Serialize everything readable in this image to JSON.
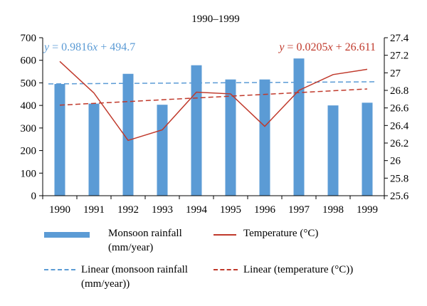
{
  "chart_data": {
    "type": "bar+line",
    "title": "1990–1999",
    "categories": [
      "1990",
      "1991",
      "1992",
      "1993",
      "1994",
      "1995",
      "1996",
      "1997",
      "1998",
      "1999"
    ],
    "series": [
      {
        "name": "Monsoon rainfall (mm/year)",
        "type": "bar",
        "axis": "left",
        "color": "#5b9bd5",
        "values": [
          495,
          408,
          540,
          403,
          578,
          515,
          515,
          608,
          400,
          412
        ]
      },
      {
        "name": "Temperature (°C)",
        "type": "line",
        "axis": "right",
        "color": "#c0392b",
        "values": [
          27.13,
          26.77,
          26.23,
          26.35,
          26.78,
          26.76,
          26.39,
          26.8,
          26.98,
          27.04
        ]
      },
      {
        "name": "Linear (monsoon rainfall (mm/year))",
        "type": "trend-dashed",
        "axis": "left",
        "color": "#5b9bd5",
        "slope": 0.9816,
        "intercept": 494.7
      },
      {
        "name": "Linear (temperature (°C))",
        "type": "trend-dashed",
        "axis": "right",
        "color": "#c0392b",
        "slope": 0.0205,
        "intercept": 26.611
      }
    ],
    "y_left": {
      "ylim": [
        0,
        700
      ],
      "ticks": [
        "0",
        "100",
        "200",
        "300",
        "400",
        "500",
        "600",
        "700"
      ]
    },
    "y_right": {
      "ylim": [
        25.6,
        27.4
      ],
      "ticks": [
        "25.6",
        "25.8",
        "26",
        "26.2",
        "26.4",
        "26.6",
        "26.8",
        "27",
        "27.2",
        "27.4"
      ]
    },
    "annotations": {
      "rain_eq": {
        "y": "y",
        "eq": " = 0.9816",
        "x": "x",
        "rest": " + 494.7",
        "color": "#5b9bd5"
      },
      "temp_eq": {
        "y": "y",
        "eq": " = 0.0205",
        "x": "x",
        "rest": " + 26.611",
        "color": "#c0392b"
      }
    },
    "legend_placement": "bottom",
    "grid": false
  },
  "legend": {
    "rain_label": "Monsoon rainfall (mm/year)",
    "temp_label": "Temperature (°C)",
    "rain_trend_label": "Linear (monsoon rainfall (mm/year))",
    "temp_trend_label": "Linear (temperature (°C))"
  }
}
